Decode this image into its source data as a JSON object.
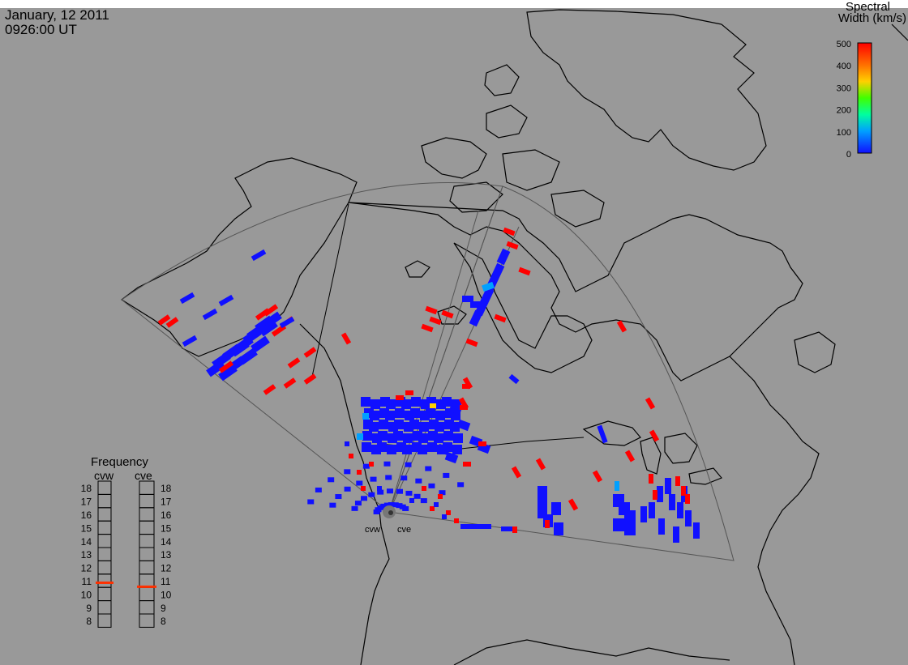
{
  "header": {
    "date": "January, 12 2011",
    "time": "0926:00 UT"
  },
  "colorbar": {
    "title_line1": "Spectral",
    "title_line2": "Width (km/s)",
    "tick_labels": [
      "500",
      "400",
      "300",
      "200",
      "100",
      "0"
    ],
    "colors": [
      "#1010ff",
      "#00a0ff",
      "#00ffa0",
      "#40ff00",
      "#ffd000",
      "#ff7000",
      "#ff0000"
    ]
  },
  "radars": {
    "west_label": "cvw",
    "east_label": "cve"
  },
  "frequency_panel": {
    "title": "Frequency",
    "radar_labels": [
      "cvw",
      "cve"
    ],
    "scale_labels": [
      "18",
      "17",
      "16",
      "15",
      "14",
      "13",
      "12",
      "11",
      "10",
      "9",
      "8"
    ],
    "cvw_value": 10.85,
    "cve_value": 10.55,
    "indicator_color": "#ff3000"
  },
  "colors": {
    "background": "#999999",
    "coastline": "#000000",
    "fov_outline": "#555555",
    "scatter_low": "#1010ff",
    "scatter_high": "#ff0000",
    "scatter_mid": "#00a0ff"
  }
}
